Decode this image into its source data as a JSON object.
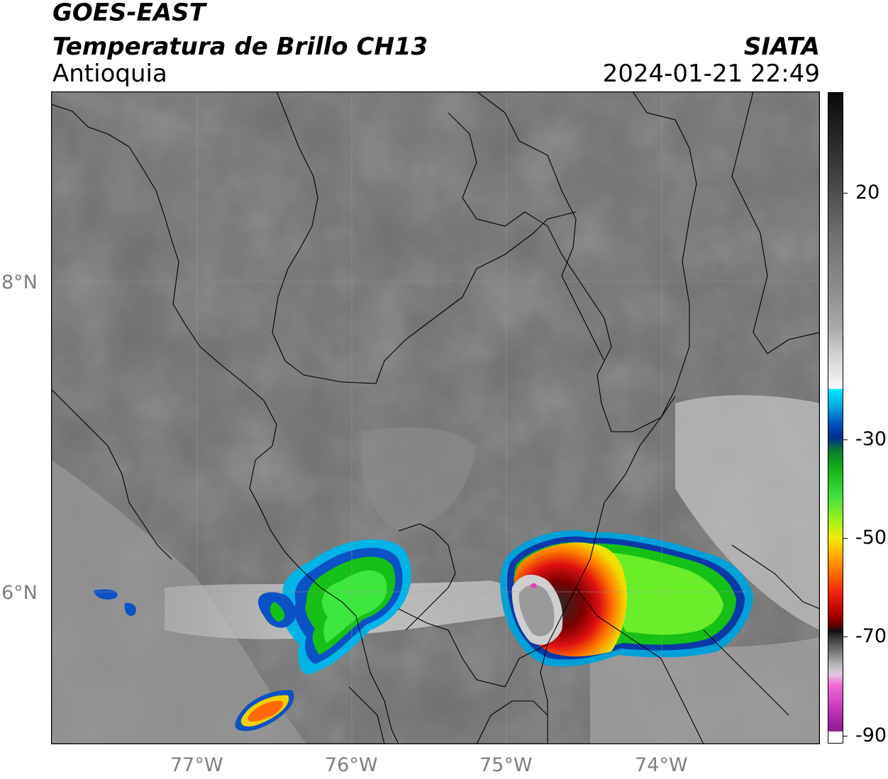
{
  "header": {
    "satellite": "GOES-EAST",
    "product": "Temperatura de Brillo CH13",
    "region": "Antioquia",
    "agency": "SIATA",
    "datetime": "2024-01-21 22:49"
  },
  "map": {
    "lat_ticks": [
      "8°N",
      "6°N"
    ],
    "lon_ticks": [
      "77°W",
      "76°W",
      "75°W",
      "74°W"
    ],
    "lon_range": [
      -77.95,
      -73.0
    ],
    "lat_range": [
      5.0,
      9.2
    ],
    "colors": {
      "background_gray": "#6e6e6e",
      "cold_cloud_green": "#1fd21f",
      "cold_cloud_red": "#d01010",
      "cloud_top_gray": "#bdbdbd"
    }
  },
  "colorbar": {
    "labels": [
      "20",
      "-30",
      "-50",
      "-70",
      "-90"
    ]
  }
}
